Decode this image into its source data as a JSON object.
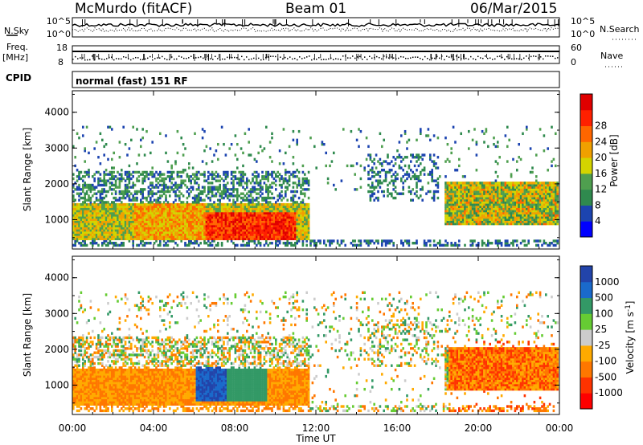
{
  "header": {
    "station": "McMurdo (fitACF)",
    "beam": "Beam 01",
    "date": "06/Mar/2015"
  },
  "noise_panel": {
    "left_label": "N.Sky",
    "right_label": "N.Search",
    "left_ticks": [
      "10^5",
      "10^0"
    ],
    "right_ticks": [
      "10^5",
      "10^0"
    ]
  },
  "freq_panel": {
    "left_label_1": "Freq.",
    "left_label_2": "[MHz]",
    "right_label": "Nave",
    "left_ticks": [
      "18",
      "8"
    ],
    "right_ticks": [
      "60",
      "0"
    ]
  },
  "cpid_panel": {
    "label": "CPID",
    "text": "normal (fast) 151 RF"
  },
  "time_axis": {
    "label": "Time UT",
    "ticks": [
      "00:00",
      "04:00",
      "08:00",
      "12:00",
      "16:00",
      "20:00",
      "00:00"
    ],
    "range_hours": [
      0,
      24
    ]
  },
  "colors": {
    "power": [
      "#0000ff",
      "#1c44b0",
      "#2f8a4e",
      "#4f9f4f",
      "#d4d400",
      "#f0a000",
      "#ff6600",
      "#ff2000",
      "#e00000"
    ],
    "velocity": [
      "#ff0000",
      "#ff3300",
      "#ff7700",
      "#ffaa00",
      "#cccccc",
      "#66cc33",
      "#339966",
      "#1a6acb",
      "#2244aa"
    ]
  },
  "chart_data": [
    {
      "type": "heatmap",
      "title": "",
      "xlabel": "Time UT",
      "ylabel": "Slant Range [km]",
      "xlim": [
        0,
        24
      ],
      "ylim": [
        180,
        4600
      ],
      "yticks": [
        1000,
        2000,
        3000,
        4000
      ],
      "colorbar": {
        "label": "Power [dB]",
        "ticks": [
          4,
          8,
          12,
          16,
          20,
          24,
          28
        ],
        "range": [
          0,
          32
        ]
      },
      "features": [
        {
          "t_start": 0,
          "t_end": 11.6,
          "range_min": 400,
          "range_max": 1500,
          "level": "high"
        },
        {
          "t_start": 6.5,
          "t_end": 11.0,
          "range_min": 500,
          "range_max": 1200,
          "level": "peak"
        },
        {
          "t_start": 18.3,
          "t_end": 24,
          "range_min": 800,
          "range_max": 2000,
          "level": "medium"
        }
      ]
    },
    {
      "type": "heatmap",
      "title": "",
      "xlabel": "Time UT",
      "ylabel": "Slant Range [km]",
      "xlim": [
        0,
        24
      ],
      "ylim": [
        180,
        4600
      ],
      "yticks": [
        1000,
        2000,
        3000,
        4000
      ],
      "colorbar": {
        "label": "Velocity [m s^-1]",
        "ticks": [
          1000,
          500,
          100,
          25,
          -25,
          -100,
          -500,
          -1000
        ]
      },
      "features": [
        {
          "t_start": 0,
          "t_end": 6.0,
          "range_min": 500,
          "range_max": 1500,
          "sign": "negative"
        },
        {
          "t_start": 6.0,
          "t_end": 7.6,
          "range_min": 500,
          "range_max": 1500,
          "sign": "positive"
        },
        {
          "t_start": 7.6,
          "t_end": 9.6,
          "range_min": 500,
          "range_max": 1500,
          "sign": "weak positive"
        },
        {
          "t_start": 9.6,
          "t_end": 11.6,
          "range_min": 500,
          "range_max": 1400,
          "sign": "negative"
        },
        {
          "t_start": 18.5,
          "t_end": 24,
          "range_min": 600,
          "range_max": 2200,
          "sign": "negative"
        }
      ]
    }
  ]
}
